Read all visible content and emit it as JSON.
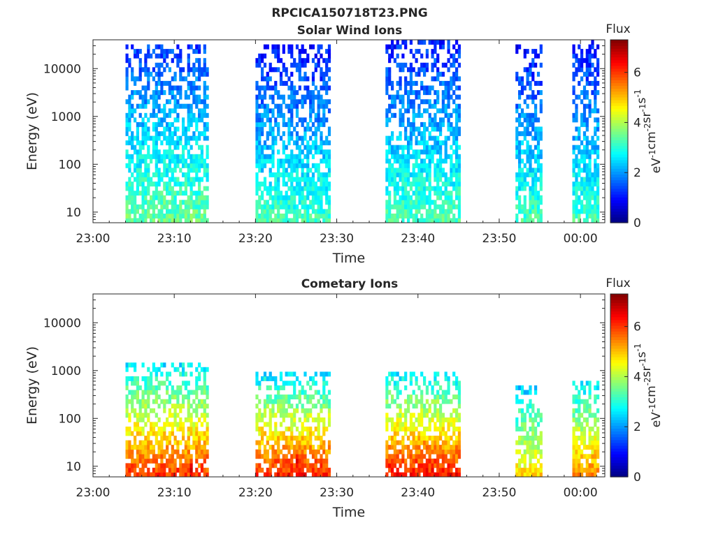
{
  "figure_title": "RPCICA150718T23.PNG",
  "chart_data": [
    {
      "type": "heatmap",
      "title": "Solar Wind Ions",
      "xlabel": "Time",
      "ylabel": "Energy (eV)",
      "y_scale": "log",
      "x_range": [
        "23:00",
        "00:03"
      ],
      "y_range": [
        6,
        40000
      ],
      "x_ticks": [
        "23:00",
        "23:10",
        "23:20",
        "23:30",
        "23:40",
        "23:50",
        "00:00"
      ],
      "y_ticks": [
        "10",
        "100",
        "1000",
        "10000"
      ],
      "colorbar": {
        "label": "Flux",
        "unit_parts": [
          "eV",
          "-1",
          "cm",
          "-2",
          "sr",
          "-1",
          "s",
          "-1"
        ],
        "range": [
          0,
          7.3
        ],
        "ticks": [
          "0",
          "2",
          "4",
          "6"
        ],
        "colormap": "jet"
      },
      "bursts": [
        {
          "start": "23:04",
          "end": "23:14",
          "energy_min": 6,
          "energy_max": 30000,
          "low_energy_flux": 3.5,
          "high_energy_flux": 1.3
        },
        {
          "start": "23:20",
          "end": "23:29",
          "energy_min": 6,
          "energy_max": 28000,
          "low_energy_flux": 3.2,
          "high_energy_flux": 1.0
        },
        {
          "start": "23:36",
          "end": "23:45",
          "energy_min": 6,
          "energy_max": 35000,
          "low_energy_flux": 3.3,
          "high_energy_flux": 1.1
        },
        {
          "start": "23:52",
          "end": "23:55",
          "energy_min": 6,
          "energy_max": 28000,
          "low_energy_flux": 3.2,
          "high_energy_flux": 1.0
        },
        {
          "start": "23:59",
          "end": "00:02",
          "energy_min": 6,
          "energy_max": 35000,
          "low_energy_flux": 3.2,
          "high_energy_flux": 1.0
        }
      ]
    },
    {
      "type": "heatmap",
      "title": "Cometary Ions",
      "xlabel": "Time",
      "ylabel": "Energy (eV)",
      "y_scale": "log",
      "x_range": [
        "23:00",
        "00:03"
      ],
      "y_range": [
        6,
        40000
      ],
      "x_ticks": [
        "23:00",
        "23:10",
        "23:20",
        "23:30",
        "23:40",
        "23:50",
        "00:00"
      ],
      "y_ticks": [
        "10",
        "100",
        "1000",
        "10000"
      ],
      "colorbar": {
        "label": "Flux",
        "unit_parts": [
          "eV",
          "-1",
          "cm",
          "-2",
          "sr",
          "-1",
          "s",
          "-1"
        ],
        "range": [
          0,
          7.3
        ],
        "ticks": [
          "0",
          "2",
          "4",
          "6"
        ],
        "colormap": "jet"
      },
      "bursts": [
        {
          "start": "23:04",
          "end": "23:14",
          "energy_min": 6,
          "energy_max": 1200,
          "low_energy_flux": 6.0,
          "high_energy_flux": 2.6
        },
        {
          "start": "23:20",
          "end": "23:29",
          "energy_min": 6,
          "energy_max": 800,
          "low_energy_flux": 6.2,
          "high_energy_flux": 2.5
        },
        {
          "start": "23:36",
          "end": "23:45",
          "energy_min": 6,
          "energy_max": 900,
          "low_energy_flux": 6.3,
          "high_energy_flux": 2.5
        },
        {
          "start": "23:52",
          "end": "23:55",
          "energy_min": 6,
          "energy_max": 400,
          "low_energy_flux": 4.8,
          "high_energy_flux": 2.4
        },
        {
          "start": "23:59",
          "end": "00:02",
          "energy_min": 6,
          "energy_max": 600,
          "low_energy_flux": 5.5,
          "high_energy_flux": 2.4
        }
      ],
      "peaks": [
        {
          "time": "23:06",
          "energy": 9,
          "flux": 5.8
        },
        {
          "time": "23:09",
          "energy": 10,
          "flux": 5.6
        },
        {
          "time": "23:12",
          "energy": 8,
          "flux": 7.2
        },
        {
          "time": "23:21",
          "energy": 10,
          "flux": 5.5
        },
        {
          "time": "23:25",
          "energy": 12,
          "flux": 6.9
        },
        {
          "time": "23:28",
          "energy": 10,
          "flux": 5.2
        },
        {
          "time": "23:38",
          "energy": 9,
          "flux": 6.5
        },
        {
          "time": "23:41",
          "energy": 9,
          "flux": 4.8
        },
        {
          "time": "23:44",
          "energy": 11,
          "flux": 6.0
        },
        {
          "time": "23:54",
          "energy": 9,
          "flux": 4.6
        },
        {
          "time": "00:00",
          "energy": 10,
          "flux": 5.0
        }
      ]
    }
  ]
}
